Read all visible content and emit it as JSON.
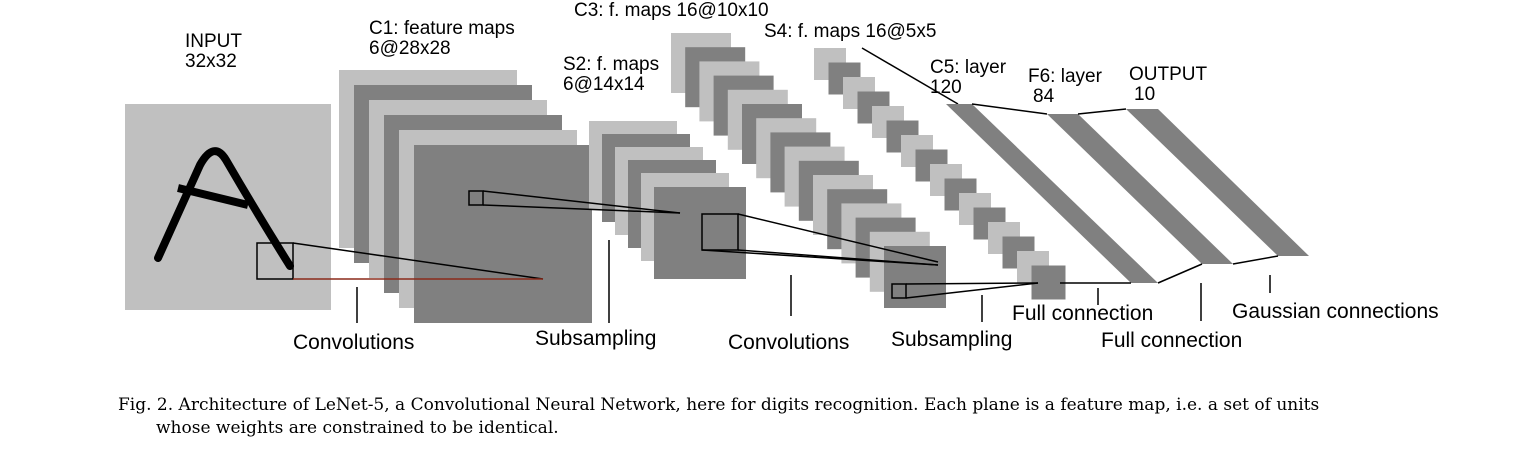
{
  "layers": {
    "input": {
      "name": "INPUT",
      "size": "32x32"
    },
    "c1": {
      "name": "C1: feature maps",
      "size": "6@28x28"
    },
    "s2": {
      "name": "S2: f. maps",
      "size": "6@14x14"
    },
    "c3": {
      "name": "C3: f. maps 16@10x10"
    },
    "s4": {
      "name": "S4: f. maps 16@5x5"
    },
    "c5": {
      "name": "C5: layer",
      "size": "120"
    },
    "f6": {
      "name": "F6: layer",
      "size": "84"
    },
    "output": {
      "name": "OUTPUT",
      "size": "10"
    }
  },
  "operations": {
    "conv1": "Convolutions",
    "sub1": "Subsampling",
    "conv2": "Convolutions",
    "sub2": "Subsampling",
    "full1": "Full connection",
    "full2": "Full connection",
    "gauss": "Gaussian connections"
  },
  "colors": {
    "light": "#c0c0c0",
    "dark": "#808080",
    "stroke": "#000000"
  },
  "caption": {
    "line1": "Fig. 2.   Architecture of LeNet-5, a Convolutional Neural Network, here for digits recognition. Each plane is a feature map, i.e. a set of units",
    "line2": "whose weights are constrained to be identical."
  }
}
